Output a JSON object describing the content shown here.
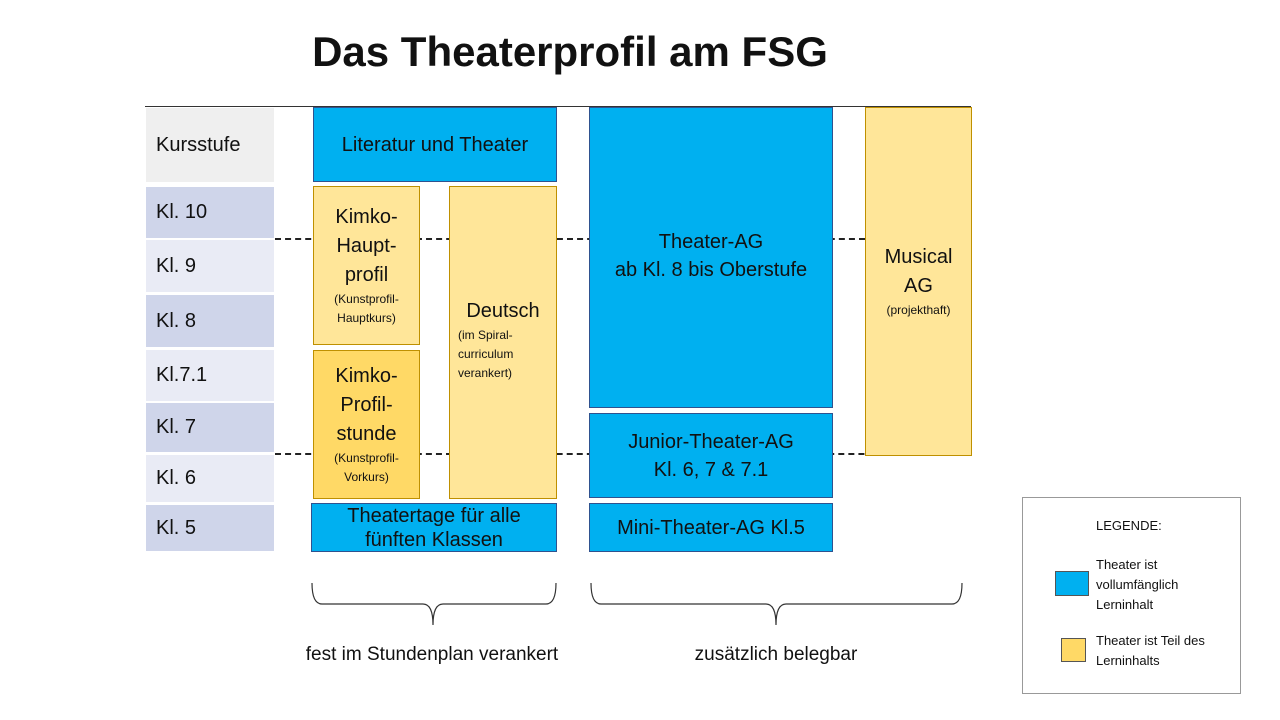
{
  "title": "Das Theaterprofil am FSG",
  "rows": [
    "Kursstufe",
    "Kl. 10",
    "Kl. 9",
    "Kl. 8",
    "Kl.7.1",
    "Kl. 7",
    "Kl. 6",
    "Kl. 5"
  ],
  "boxes": {
    "literatur": "Literatur und Theater",
    "kimko_haupt": {
      "l1": "Kimko-",
      "l2": "Haupt-",
      "l3": "profil",
      "note1": "(Kunstprofil-",
      "note2": "Hauptkurs)"
    },
    "kimko_profil": {
      "l1": "Kimko-",
      "l2": "Profil-",
      "l3": "stunde",
      "note1": "(Kunstprofil-",
      "note2": "Vorkurs)"
    },
    "deutsch": {
      "l1": "Deutsch",
      "note1": "(im Spiral-",
      "note2": "curriculum",
      "note3": "verankert)"
    },
    "theatertage": {
      "l1": "Theatertage für alle",
      "l2": "fünften Klassen"
    },
    "theater_ag": {
      "l1": "Theater-AG",
      "l2": "ab Kl. 8 bis Oberstufe"
    },
    "junior": {
      "l1": "Junior-Theater-AG",
      "l2": "Kl. 6, 7 & 7.1"
    },
    "mini": "Mini-Theater-AG Kl.5",
    "musical": {
      "l1": "Musical",
      "l2": "AG",
      "note1": "(projekthaft)"
    }
  },
  "braces": {
    "left": "fest im Stundenplan verankert",
    "right": "zusätzlich belegbar"
  },
  "legend": {
    "title": "LEGENDE:",
    "blue": {
      "l1": "Theater ist",
      "l2": "vollumfänglich",
      "l3": "Lerninhalt"
    },
    "yellow": {
      "l1": "Theater ist Teil des",
      "l2": "Lerninhalts"
    }
  },
  "colors": {
    "blue": "#00b0f0",
    "yellow": "#ffe699",
    "yellow_dark": "#ffd966",
    "row_dark": "#cfd5ea",
    "row_light": "#e9ebf5",
    "row_header": "#efefef"
  }
}
